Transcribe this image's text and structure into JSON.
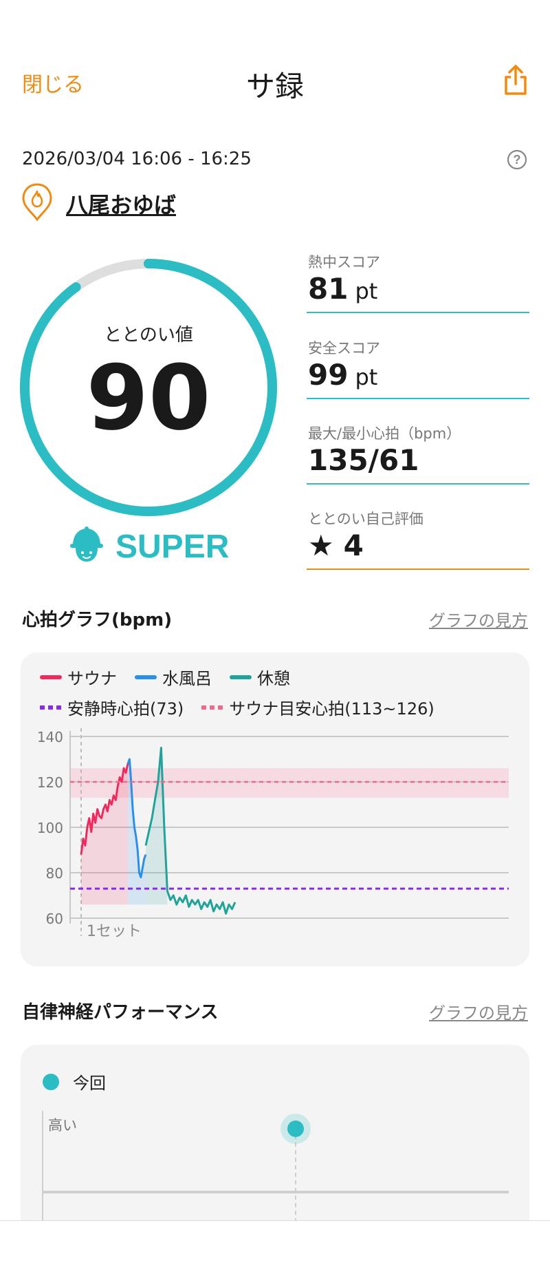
{
  "header": {
    "close_label": "閉じる",
    "title": "サ録"
  },
  "session": {
    "datetime": "2026/03/04 16:06 - 16:25",
    "facility": "八尾おゆば"
  },
  "score": {
    "label": "ととのい値",
    "value": "90",
    "fraction": 0.9,
    "rank": "SUPER"
  },
  "stats": [
    {
      "label": "熱中スコア",
      "value": "81",
      "unit": "pt"
    },
    {
      "label": "安全スコア",
      "value": "99",
      "unit": "pt"
    },
    {
      "label": "最大/最小心拍（bpm）",
      "value": "135/61",
      "unit": ""
    },
    {
      "label": "ととのい自己評価",
      "value": "4",
      "unit": ""
    }
  ],
  "self_rating_star": "★",
  "heart_section": {
    "title": "心拍グラフ(bpm)",
    "link": "グラフの見方"
  },
  "legend": {
    "sauna": "サウナ",
    "water": "水風呂",
    "rest": "休憩",
    "resting_hr": "安静時心拍(73)",
    "target_hr": "サウナ目安心拍(113~126)"
  },
  "colors": {
    "accent": "#2bbcc4",
    "orange": "#f08a10",
    "sauna": "#ef2a5e",
    "water": "#2a8fe8",
    "rest": "#1fa39a",
    "resting": "#8a2be2",
    "target": "#ef6a8a"
  },
  "chart_data": {
    "type": "line",
    "ylim": [
      60,
      140
    ],
    "yticks": [
      "140",
      "120",
      "100",
      "80",
      "60"
    ],
    "x_annotation": "1セット",
    "resting_hr": 73,
    "target_band": [
      113,
      126
    ],
    "target_line": 120,
    "series": [
      {
        "name": "サウナ",
        "values": [
          88,
          95,
          92,
          100,
          104,
          98,
          106,
          102,
          108,
          105,
          104,
          108,
          110,
          107,
          112,
          110,
          114,
          112,
          118,
          122,
          120,
          126,
          124,
          128
        ]
      },
      {
        "name": "水風呂",
        "values": [
          128,
          130,
          120,
          108,
          100,
          96,
          90,
          80,
          78,
          82,
          86,
          88
        ]
      },
      {
        "name": "休憩",
        "values": [
          92,
          98,
          104,
          112,
          120,
          135,
          100,
          72,
          68,
          70,
          66,
          69,
          67,
          70,
          65,
          68,
          66,
          68,
          64,
          67,
          65,
          68,
          63,
          66,
          64,
          67,
          62,
          66,
          64,
          67
        ]
      }
    ]
  },
  "ans_section": {
    "title": "自律神経パフォーマンス",
    "link": "グラフの見方",
    "legend": "今回",
    "y_label": "高い"
  }
}
